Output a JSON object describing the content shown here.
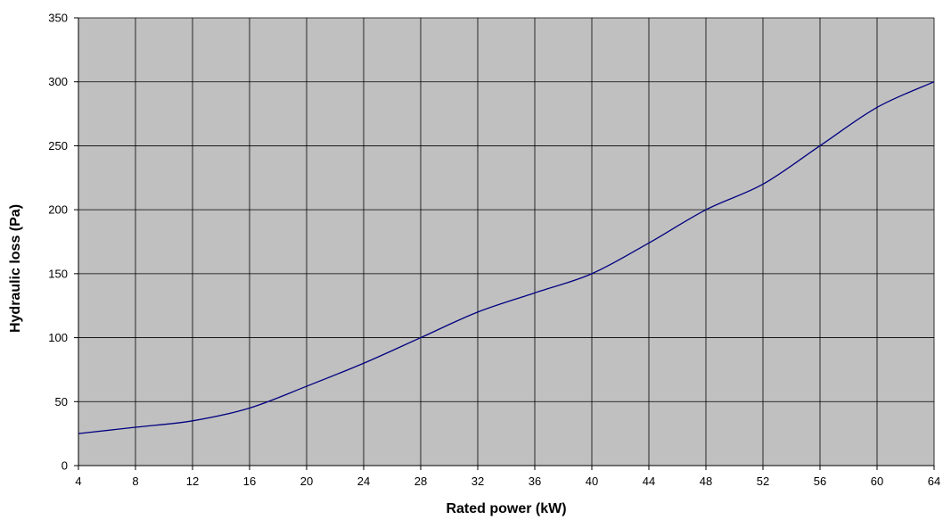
{
  "chart_data": {
    "type": "line",
    "title": "",
    "xlabel": "Rated power (kW)",
    "ylabel": "Hydraulic loss (Pa)",
    "xlim": [
      4,
      64
    ],
    "ylim": [
      0,
      350
    ],
    "x_ticks": [
      4,
      8,
      12,
      16,
      20,
      24,
      28,
      32,
      36,
      40,
      44,
      48,
      52,
      56,
      60,
      64
    ],
    "y_ticks": [
      0,
      50,
      100,
      150,
      200,
      250,
      300,
      350
    ],
    "grid": true,
    "legend": "none",
    "series": [
      {
        "x": [
          4,
          8,
          12,
          16,
          20,
          24,
          28,
          32,
          36,
          40,
          44,
          48,
          52,
          56,
          60,
          64
        ],
        "values": [
          25,
          30,
          35,
          45,
          62,
          80,
          100,
          120,
          135,
          150,
          174,
          200,
          220,
          250,
          280,
          300
        ]
      }
    ],
    "colors": {
      "plot_background": "#c0c0c0",
      "grid": "#000000",
      "line": "#000080"
    }
  }
}
